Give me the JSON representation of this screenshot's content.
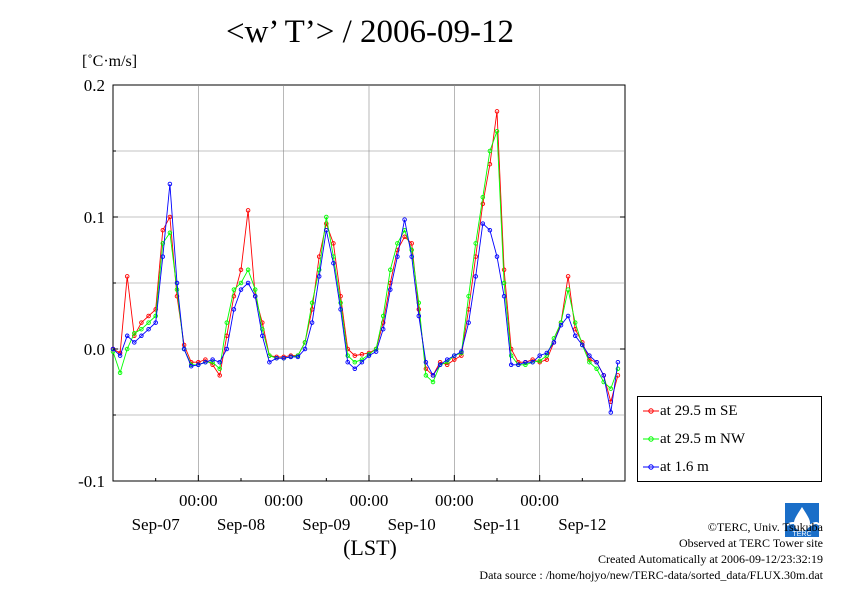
{
  "chart_data": {
    "type": "line",
    "title": "<w’ T’> / 2006-09-12",
    "unit_label": "[˚C·m/s]",
    "xlabel": "(LST)",
    "ylim": [
      -0.1,
      0.2
    ],
    "yticks": [
      -0.1,
      0.0,
      0.1,
      0.2
    ],
    "ytick_labels": [
      "-0.1",
      "0.0",
      "0.1",
      "0.2"
    ],
    "x_range_days": [
      "2006-09-06T00:00",
      "2006-09-12T24:00"
    ],
    "xticks_midnight": [
      "00:00",
      "00:00",
      "00:00",
      "00:00",
      "00:00"
    ],
    "xtick_date_labels": [
      "Sep-07",
      "Sep-08",
      "Sep-09",
      "Sep-10",
      "Sep-11",
      "Sep-12"
    ],
    "grid": true,
    "legend_position": "right-bottom",
    "series": [
      {
        "name": "at 29.5 m SE",
        "color": "#ff0000",
        "x": [
          "09-06 00:00",
          "09-06 02:00",
          "09-06 04:00",
          "09-06 06:00",
          "09-06 08:00",
          "09-06 10:00",
          "09-06 12:00",
          "09-06 14:00",
          "09-06 16:00",
          "09-06 18:00",
          "09-06 20:00",
          "09-06 22:00",
          "09-07 00:00",
          "09-07 02:00",
          "09-07 04:00",
          "09-07 06:00",
          "09-07 08:00",
          "09-07 10:00",
          "09-07 12:00",
          "09-07 14:00",
          "09-07 16:00",
          "09-07 18:00",
          "09-07 20:00",
          "09-07 22:00",
          "09-08 00:00",
          "09-08 02:00",
          "09-08 04:00",
          "09-08 06:00",
          "09-08 08:00",
          "09-08 10:00",
          "09-08 12:00",
          "09-08 14:00",
          "09-08 16:00",
          "09-08 18:00",
          "09-08 20:00",
          "09-08 22:00",
          "09-09 00:00",
          "09-09 02:00",
          "09-09 04:00",
          "09-09 06:00",
          "09-09 08:00",
          "09-09 10:00",
          "09-09 12:00",
          "09-09 14:00",
          "09-09 16:00",
          "09-09 18:00",
          "09-09 20:00",
          "09-09 22:00",
          "09-10 00:00",
          "09-10 02:00",
          "09-10 04:00",
          "09-10 06:00",
          "09-10 08:00",
          "09-10 10:00",
          "09-10 12:00",
          "09-10 14:00",
          "09-10 16:00",
          "09-10 18:00",
          "09-10 20:00",
          "09-10 22:00",
          "09-11 00:00",
          "09-11 02:00",
          "09-11 04:00",
          "09-11 06:00",
          "09-11 08:00",
          "09-11 10:00",
          "09-11 12:00",
          "09-11 14:00",
          "09-11 16:00",
          "09-11 18:00",
          "09-11 20:00",
          "09-11 22:00"
        ],
        "values": [
          0.0,
          -0.003,
          0.055,
          0.01,
          0.02,
          0.025,
          0.03,
          0.09,
          0.1,
          0.04,
          0.003,
          -0.01,
          -0.01,
          -0.008,
          -0.012,
          -0.02,
          0.01,
          0.04,
          0.06,
          0.105,
          0.04,
          0.02,
          -0.005,
          -0.006,
          -0.006,
          -0.005,
          -0.005,
          0.005,
          0.03,
          0.07,
          0.095,
          0.08,
          0.04,
          0.0,
          -0.005,
          -0.004,
          -0.003,
          0.0,
          0.02,
          0.05,
          0.075,
          0.085,
          0.08,
          0.03,
          -0.015,
          -0.02,
          -0.01,
          -0.012,
          -0.008,
          -0.005,
          0.03,
          0.07,
          0.11,
          0.14,
          0.18,
          0.06,
          0.0,
          -0.01,
          -0.01,
          -0.008,
          -0.01,
          -0.008,
          0.005,
          0.02,
          0.055,
          0.015,
          0.005,
          -0.008,
          -0.01,
          -0.02,
          -0.04,
          -0.02
        ]
      },
      {
        "name": "at 29.5 m NW",
        "color": "#00ff00",
        "x": [
          "09-06 00:00",
          "09-06 02:00",
          "09-06 04:00",
          "09-06 06:00",
          "09-06 08:00",
          "09-06 10:00",
          "09-06 12:00",
          "09-06 14:00",
          "09-06 16:00",
          "09-06 18:00",
          "09-06 20:00",
          "09-06 22:00",
          "09-07 00:00",
          "09-07 02:00",
          "09-07 04:00",
          "09-07 06:00",
          "09-07 08:00",
          "09-07 10:00",
          "09-07 12:00",
          "09-07 14:00",
          "09-07 16:00",
          "09-07 18:00",
          "09-07 20:00",
          "09-07 22:00",
          "09-08 00:00",
          "09-08 02:00",
          "09-08 04:00",
          "09-08 06:00",
          "09-08 08:00",
          "09-08 10:00",
          "09-08 12:00",
          "09-08 14:00",
          "09-08 16:00",
          "09-08 18:00",
          "09-08 20:00",
          "09-08 22:00",
          "09-09 00:00",
          "09-09 02:00",
          "09-09 04:00",
          "09-09 06:00",
          "09-09 08:00",
          "09-09 10:00",
          "09-09 12:00",
          "09-09 14:00",
          "09-09 16:00",
          "09-09 18:00",
          "09-09 20:00",
          "09-09 22:00",
          "09-10 00:00",
          "09-10 02:00",
          "09-10 04:00",
          "09-10 06:00",
          "09-10 08:00",
          "09-10 10:00",
          "09-10 12:00",
          "09-10 14:00",
          "09-10 16:00",
          "09-10 18:00",
          "09-10 20:00",
          "09-10 22:00",
          "09-11 00:00",
          "09-11 02:00",
          "09-11 04:00",
          "09-11 06:00",
          "09-11 08:00",
          "09-11 10:00",
          "09-11 12:00",
          "09-11 14:00",
          "09-11 16:00",
          "09-11 18:00",
          "09-11 20:00",
          "09-11 22:00"
        ],
        "values": [
          -0.002,
          -0.018,
          0.0,
          0.012,
          0.015,
          0.02,
          0.025,
          0.08,
          0.088,
          0.045,
          0.0,
          -0.012,
          -0.012,
          -0.01,
          -0.01,
          -0.015,
          0.02,
          0.045,
          0.05,
          0.06,
          0.045,
          0.015,
          -0.005,
          -0.007,
          -0.007,
          -0.006,
          -0.005,
          0.005,
          0.035,
          0.06,
          0.1,
          0.07,
          0.035,
          -0.005,
          -0.01,
          -0.008,
          -0.004,
          0.0,
          0.025,
          0.06,
          0.08,
          0.09,
          0.075,
          0.035,
          -0.02,
          -0.025,
          -0.012,
          -0.01,
          -0.005,
          -0.003,
          0.04,
          0.08,
          0.115,
          0.15,
          0.165,
          0.05,
          -0.005,
          -0.012,
          -0.012,
          -0.01,
          -0.009,
          -0.005,
          0.008,
          0.02,
          0.045,
          0.02,
          0.003,
          -0.01,
          -0.015,
          -0.025,
          -0.03,
          -0.015
        ]
      },
      {
        "name": "at 1.6 m",
        "color": "#0000ff",
        "x": [
          "09-06 00:00",
          "09-06 02:00",
          "09-06 04:00",
          "09-06 06:00",
          "09-06 08:00",
          "09-06 10:00",
          "09-06 12:00",
          "09-06 14:00",
          "09-06 16:00",
          "09-06 18:00",
          "09-06 20:00",
          "09-06 22:00",
          "09-07 00:00",
          "09-07 02:00",
          "09-07 04:00",
          "09-07 06:00",
          "09-07 08:00",
          "09-07 10:00",
          "09-07 12:00",
          "09-07 14:00",
          "09-07 16:00",
          "09-07 18:00",
          "09-07 20:00",
          "09-07 22:00",
          "09-08 00:00",
          "09-08 02:00",
          "09-08 04:00",
          "09-08 06:00",
          "09-08 08:00",
          "09-08 10:00",
          "09-08 12:00",
          "09-08 14:00",
          "09-08 16:00",
          "09-08 18:00",
          "09-08 20:00",
          "09-08 22:00",
          "09-09 00:00",
          "09-09 02:00",
          "09-09 04:00",
          "09-09 06:00",
          "09-09 08:00",
          "09-09 10:00",
          "09-09 12:00",
          "09-09 14:00",
          "09-09 16:00",
          "09-09 18:00",
          "09-09 20:00",
          "09-09 22:00",
          "09-10 00:00",
          "09-10 02:00",
          "09-10 04:00",
          "09-10 06:00",
          "09-10 08:00",
          "09-10 10:00",
          "09-10 12:00",
          "09-10 14:00",
          "09-10 16:00",
          "09-10 18:00",
          "09-10 20:00",
          "09-10 22:00",
          "09-11 00:00",
          "09-11 02:00",
          "09-11 04:00",
          "09-11 06:00",
          "09-11 08:00",
          "09-11 10:00",
          "09-11 12:00",
          "09-11 14:00",
          "09-11 16:00",
          "09-11 18:00",
          "09-11 20:00",
          "09-11 22:00"
        ],
        "values": [
          0.0,
          -0.005,
          0.01,
          0.005,
          0.01,
          0.015,
          0.02,
          0.07,
          0.125,
          0.05,
          0.0,
          -0.013,
          -0.012,
          -0.01,
          -0.008,
          -0.01,
          0.0,
          0.03,
          0.045,
          0.05,
          0.04,
          0.01,
          -0.01,
          -0.007,
          -0.007,
          -0.006,
          -0.006,
          0.0,
          0.02,
          0.055,
          0.09,
          0.065,
          0.03,
          -0.01,
          -0.015,
          -0.01,
          -0.005,
          -0.002,
          0.015,
          0.045,
          0.07,
          0.098,
          0.07,
          0.025,
          -0.01,
          -0.02,
          -0.012,
          -0.008,
          -0.005,
          -0.002,
          0.02,
          0.055,
          0.095,
          0.09,
          0.07,
          0.04,
          -0.012,
          -0.012,
          -0.01,
          -0.01,
          -0.005,
          -0.003,
          0.005,
          0.018,
          0.025,
          0.01,
          0.003,
          -0.005,
          -0.01,
          -0.02,
          -0.048,
          -0.01
        ]
      }
    ]
  },
  "credits": {
    "copyright": "©TERC, Univ. Tsukuba",
    "observed": "Observed at TERC Tower site",
    "created": "Created Automatically at 2006-09-12/23:32:19",
    "source": "Data source : /home/hojyo/new/TERC-data/sorted_data/FLUX.30m.dat"
  },
  "logo": {
    "text": "TERC",
    "color": "#1a6ec8"
  }
}
